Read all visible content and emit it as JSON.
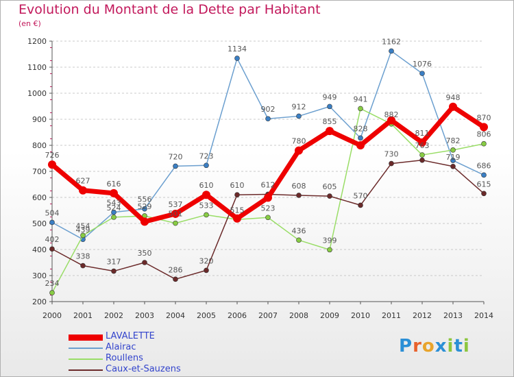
{
  "title": "Evolution du Montant de la Dette par Habitant",
  "unit": "(en €)",
  "logo": {
    "letters": [
      "P",
      "r",
      "o",
      "x",
      "i",
      "t",
      "i"
    ],
    "colors": [
      "#2b8fd6",
      "#e8612c",
      "#e8a42c",
      "#2b8fd6",
      "#8cc63f",
      "#2b8fd6",
      "#8cc63f"
    ]
  },
  "chart_data": {
    "type": "line",
    "title": "Evolution du Montant de la Dette par Habitant",
    "ylabel": "(en €)",
    "x": [
      "2000",
      "2001",
      "2002",
      "2003",
      "2004",
      "2005",
      "2006",
      "2007",
      "2008",
      "2009",
      "2010",
      "2011",
      "2012",
      "2013",
      "2014"
    ],
    "ylim": [
      200,
      1200
    ],
    "yticks": [
      200,
      300,
      400,
      500,
      600,
      700,
      800,
      900,
      1000,
      1100,
      1200
    ],
    "grid": "horizontal dashed",
    "legend": "bottom-left",
    "series": [
      {
        "name": "LAVALETTE",
        "color": "#ee0000",
        "width": 7,
        "marker": "#ee0000",
        "values": [
          726,
          627,
          616,
          507,
          537,
          610,
          519,
          599,
          780,
          855,
          800,
          896,
          811,
          948,
          870
        ],
        "labels": [
          "726",
          "627",
          "616",
          "",
          "537",
          "610",
          "",
          "",
          "780",
          "855",
          "",
          "",
          "811",
          "948",
          "870"
        ]
      },
      {
        "name": "Alairac",
        "color": "#6b9fcf",
        "width": 1.5,
        "marker": "#3b7fc4",
        "values": [
          504,
          439,
          543,
          556,
          720,
          723,
          1134,
          902,
          912,
          949,
          828,
          1162,
          1076,
          742,
          686
        ],
        "labels": [
          "504",
          "439",
          "543",
          "556",
          "720",
          "723",
          "1134",
          "902",
          "912",
          "949",
          "828",
          "1162",
          "1076",
          "",
          "686"
        ]
      },
      {
        "name": "Roullens",
        "color": "#99dd66",
        "width": 1.5,
        "marker": "#88cc44",
        "values": [
          234,
          454,
          524,
          529,
          501,
          533,
          515,
          523,
          436,
          399,
          941,
          882,
          763,
          782,
          806
        ],
        "labels": [
          "234",
          "454",
          "524",
          "529",
          "501",
          "533",
          "515",
          "523",
          "436",
          "399",
          "941",
          "882",
          "763",
          "782",
          "806"
        ]
      },
      {
        "name": "Caux-et-Sauzens",
        "color": "#6b2a2a",
        "width": 1.5,
        "marker": "#6b2a2a",
        "values": [
          402,
          338,
          317,
          350,
          286,
          320,
          610,
          612,
          608,
          605,
          570,
          730,
          743,
          719,
          615
        ],
        "labels": [
          "402",
          "338",
          "317",
          "350",
          "286",
          "320",
          "610",
          "612",
          "608",
          "605",
          "570",
          "730",
          "",
          "719",
          "615"
        ]
      }
    ]
  }
}
